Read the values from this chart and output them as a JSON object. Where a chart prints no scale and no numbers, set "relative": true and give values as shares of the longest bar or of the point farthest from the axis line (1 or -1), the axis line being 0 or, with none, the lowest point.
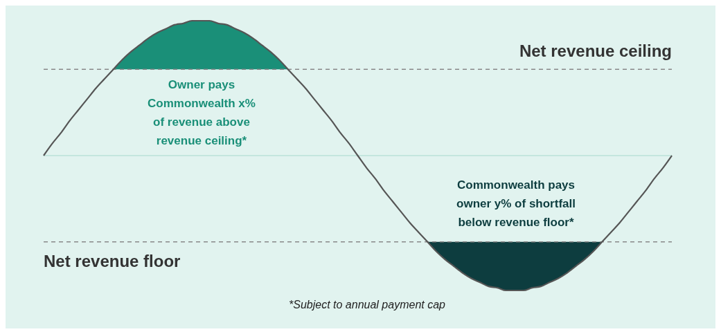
{
  "chart_data": {
    "type": "line",
    "relative": true,
    "categories": [
      null,
      null,
      null,
      null,
      null,
      null,
      null,
      null,
      null,
      null,
      null,
      null,
      null,
      null,
      null,
      null,
      null,
      null,
      null,
      null,
      null,
      null,
      null,
      null,
      null,
      null,
      null,
      null,
      null,
      null,
      null,
      null,
      null,
      null,
      null,
      null,
      null,
      null,
      null,
      null,
      null,
      null,
      null,
      null,
      null,
      null,
      null,
      null,
      null,
      null,
      null,
      null,
      null,
      null,
      null,
      null,
      null,
      null,
      null,
      null,
      null,
      null,
      null,
      null,
      null,
      null,
      null,
      null,
      null,
      null,
      null,
      null,
      null
    ],
    "series": [
      {
        "color": "#555555",
        "values": [
          0,
          0.09,
          0.17,
          0.26,
          0.34,
          0.42,
          0.5,
          0.57,
          0.64,
          0.71,
          0.77,
          0.82,
          0.87,
          0.91,
          0.94,
          0.97,
          0.98,
          1,
          1,
          1,
          0.98,
          0.97,
          0.94,
          0.91,
          0.87,
          0.82,
          0.77,
          0.71,
          0.64,
          0.57,
          0.5,
          0.42,
          0.34,
          0.26,
          0.17,
          0.09,
          0,
          -0.09,
          -0.17,
          -0.26,
          -0.34,
          -0.42,
          -0.5,
          -0.57,
          -0.64,
          -0.71,
          -0.77,
          -0.82,
          -0.87,
          -0.91,
          -0.94,
          -0.97,
          -0.98,
          -1,
          -1,
          -1,
          -0.98,
          -0.97,
          -0.94,
          -0.91,
          -0.87,
          -0.82,
          -0.77,
          -0.71,
          -0.64,
          -0.57,
          -0.5,
          -0.42,
          -0.34,
          -0.26,
          -0.17,
          -0.09,
          0
        ]
      },
      {
        "type": "area",
        "color": "#1a8f78",
        "values": [
          null,
          null,
          null,
          null,
          null,
          null,
          null,
          null,
          0.64,
          0.71,
          0.77,
          0.82,
          0.87,
          0.91,
          0.94,
          0.97,
          0.98,
          1,
          1,
          1,
          0.98,
          0.97,
          0.94,
          0.91,
          0.87,
          0.82,
          0.77,
          0.71,
          0.64,
          null,
          null,
          null,
          null,
          null,
          null,
          null,
          null,
          null,
          null,
          null,
          null,
          null,
          null,
          null,
          null,
          null,
          null,
          null,
          null,
          null,
          null,
          null,
          null,
          null,
          null,
          null,
          null,
          null,
          null,
          null,
          null,
          null,
          null,
          null,
          null,
          null,
          null,
          null,
          null,
          null,
          null,
          null,
          null
        ]
      },
      {
        "type": "area",
        "color": "#0d3d3f",
        "values": [
          null,
          null,
          null,
          null,
          null,
          null,
          null,
          null,
          null,
          null,
          null,
          null,
          null,
          null,
          null,
          null,
          null,
          null,
          null,
          null,
          null,
          null,
          null,
          null,
          null,
          null,
          null,
          null,
          null,
          null,
          null,
          null,
          null,
          null,
          null,
          null,
          null,
          null,
          null,
          null,
          null,
          null,
          null,
          null,
          -0.64,
          -0.71,
          -0.77,
          -0.82,
          -0.87,
          -0.91,
          -0.94,
          -0.97,
          -0.98,
          -1,
          -1,
          -1,
          -0.98,
          -0.97,
          -0.94,
          -0.91,
          -0.87,
          -0.82,
          -0.77,
          -0.71,
          -0.64,
          null,
          null,
          null,
          null,
          null,
          null,
          null,
          null
        ]
      }
    ],
    "ref_lines": [
      {
        "axis": "y",
        "value": 0.64,
        "label": "Net revenue ceiling",
        "color": "#888888",
        "line_style": "dashed"
      },
      {
        "axis": "y",
        "value": -0.64,
        "label": "Net revenue floor",
        "color": "#888888",
        "line_style": "dashed"
      },
      {
        "axis": "y",
        "value": 0,
        "color": "#a6d9ce",
        "line_style": "solid"
      }
    ],
    "annotations": [
      "Owner pays\nCommonwealth x%\nof revenue above\nrevenue ceiling*",
      "Commonwealth pays\nowner y% of shortfall\nbelow revenue floor*",
      "*Subject to annual payment cap"
    ]
  }
}
